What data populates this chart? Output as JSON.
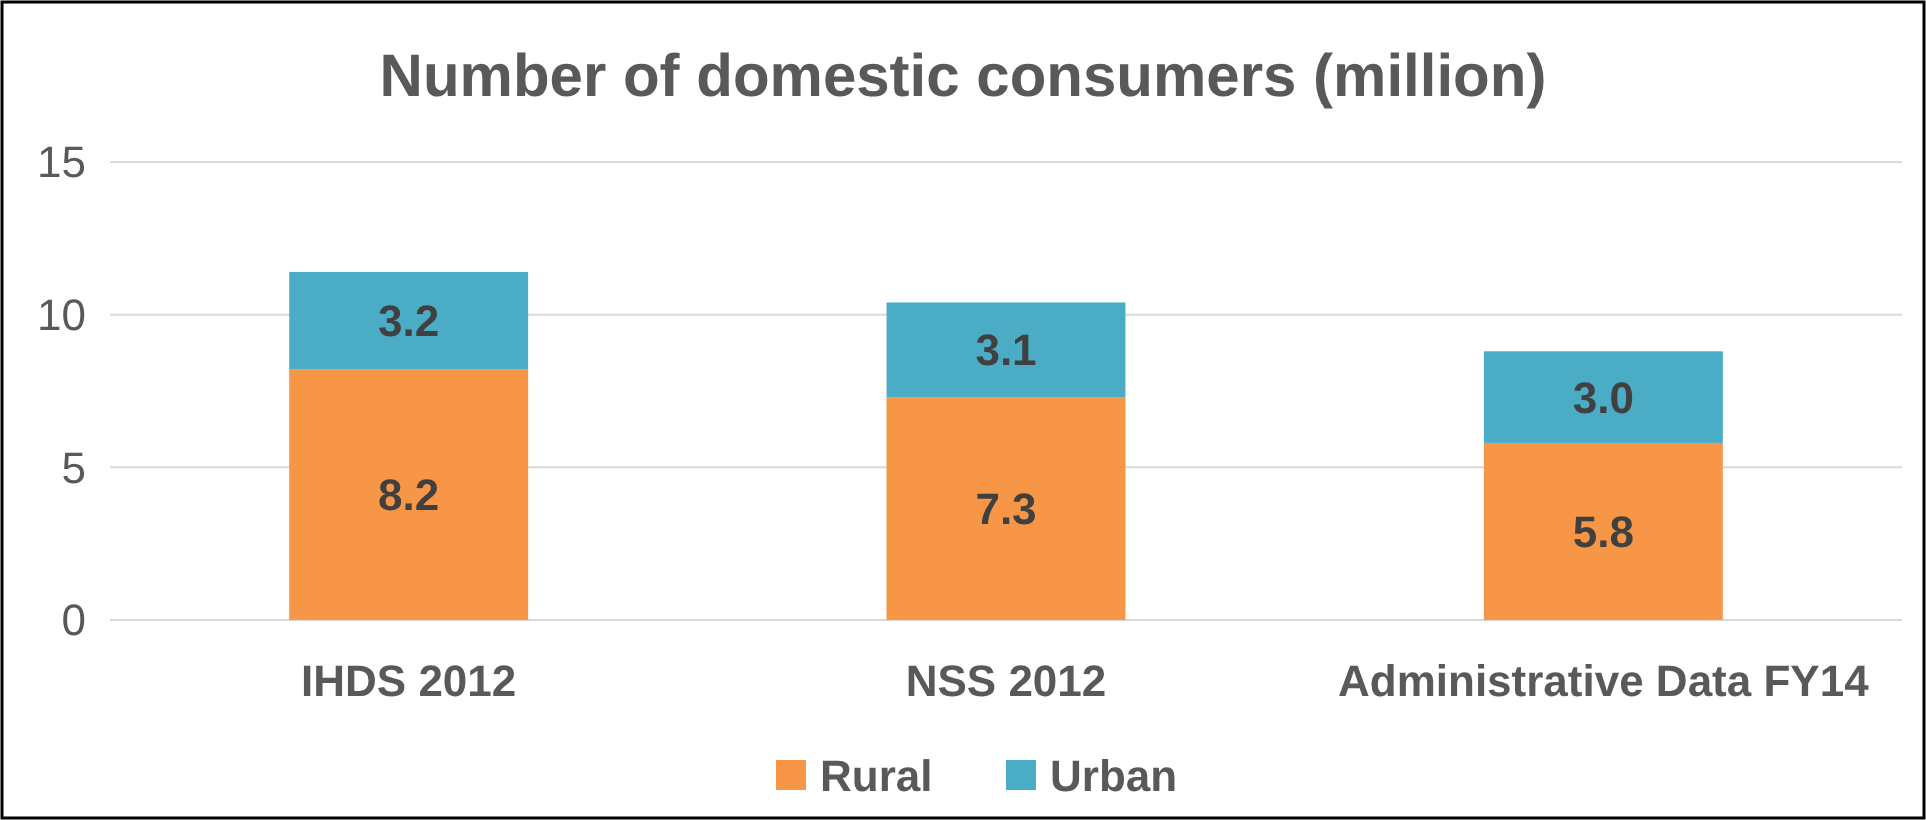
{
  "chart_data": {
    "type": "bar",
    "title": "Number of domestic consumers  (million)",
    "categories": [
      "IHDS 2012",
      "NSS 2012",
      "Administrative Data FY14"
    ],
    "stacked": true,
    "ylim": [
      0,
      15
    ],
    "yticks": [
      0,
      5,
      10,
      15
    ],
    "grid": "y",
    "legend": "bottom",
    "series": [
      {
        "name": "Rural",
        "color": "#f79646",
        "values": [
          8.2,
          7.3,
          5.8
        ],
        "value_labels": [
          "8.2",
          "7.3",
          "5.8"
        ]
      },
      {
        "name": "Urban",
        "color": "#4bacc6",
        "values": [
          3.2,
          3.1,
          3.0
        ],
        "value_labels": [
          "3.2",
          "3.1",
          "3.0"
        ]
      }
    ]
  }
}
